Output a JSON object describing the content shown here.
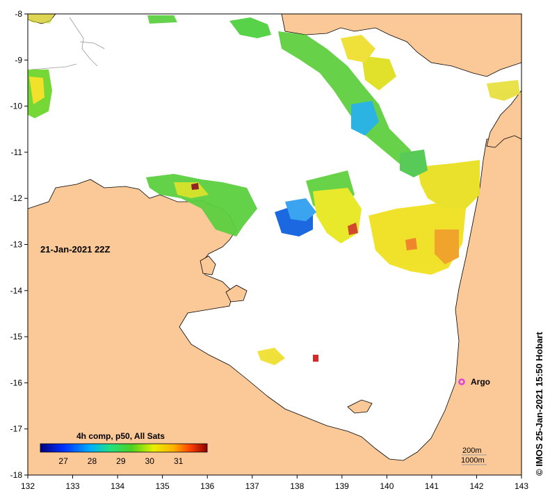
{
  "map": {
    "timestamp_label": "21-Jan-2021 22Z",
    "credit": "© IMOS 25-Jan-2021 15:50 Hobart",
    "colorbar": {
      "title": "4h comp, p50, All Sats",
      "ticks": [
        "27",
        "28",
        "29",
        "30",
        "31"
      ],
      "tick_values": [
        27,
        28,
        29,
        30,
        31
      ],
      "range": [
        26.2,
        32.0
      ]
    },
    "x_axis": {
      "ticks": [
        "132",
        "133",
        "134",
        "135",
        "136",
        "137",
        "138",
        "139",
        "140",
        "141",
        "142",
        "143"
      ],
      "range": [
        132,
        143
      ]
    },
    "y_axis": {
      "ticks": [
        "-8",
        "-9",
        "-10",
        "-11",
        "-12",
        "-13",
        "-14",
        "-15",
        "-16",
        "-17",
        "-18"
      ],
      "range": [
        -18,
        -8
      ]
    },
    "markers": [
      {
        "label": "Argo",
        "lon": 141.7,
        "lat": -16.0,
        "color": "#e040e0"
      }
    ],
    "depth_legend": [
      "200m",
      "1000m"
    ],
    "colors": {
      "land": "#fbc898",
      "sea": "#ffffff",
      "coast": "#000000",
      "contour": "#999999"
    }
  }
}
